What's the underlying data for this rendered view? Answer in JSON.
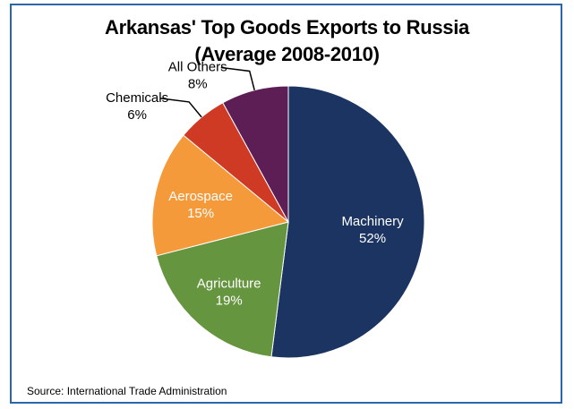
{
  "chart_data": {
    "type": "pie",
    "title": "Arkansas' Top Goods Exports to Russia",
    "subtitle": "(Average 2008-2010)",
    "slices": [
      {
        "label": "Machinery",
        "value": 52,
        "display": "52%",
        "color": "#1b3461",
        "label_color": "#ffffff"
      },
      {
        "label": "Agriculture",
        "value": 19,
        "display": "19%",
        "color": "#65953e",
        "label_color": "#ffffff"
      },
      {
        "label": "Aerospace",
        "value": 15,
        "display": "15%",
        "color": "#f59a3a",
        "label_color": "#ffffff"
      },
      {
        "label": "Chemicals",
        "value": 6,
        "display": "6%",
        "color": "#cf3a25",
        "label_color": "#000000"
      },
      {
        "label": "All Others",
        "value": 8,
        "display": "8%",
        "color": "#5d1e55",
        "label_color": "#000000"
      }
    ],
    "start_angle_deg": 0,
    "direction": "clockwise"
  },
  "source": "Source: International Trade Administration"
}
